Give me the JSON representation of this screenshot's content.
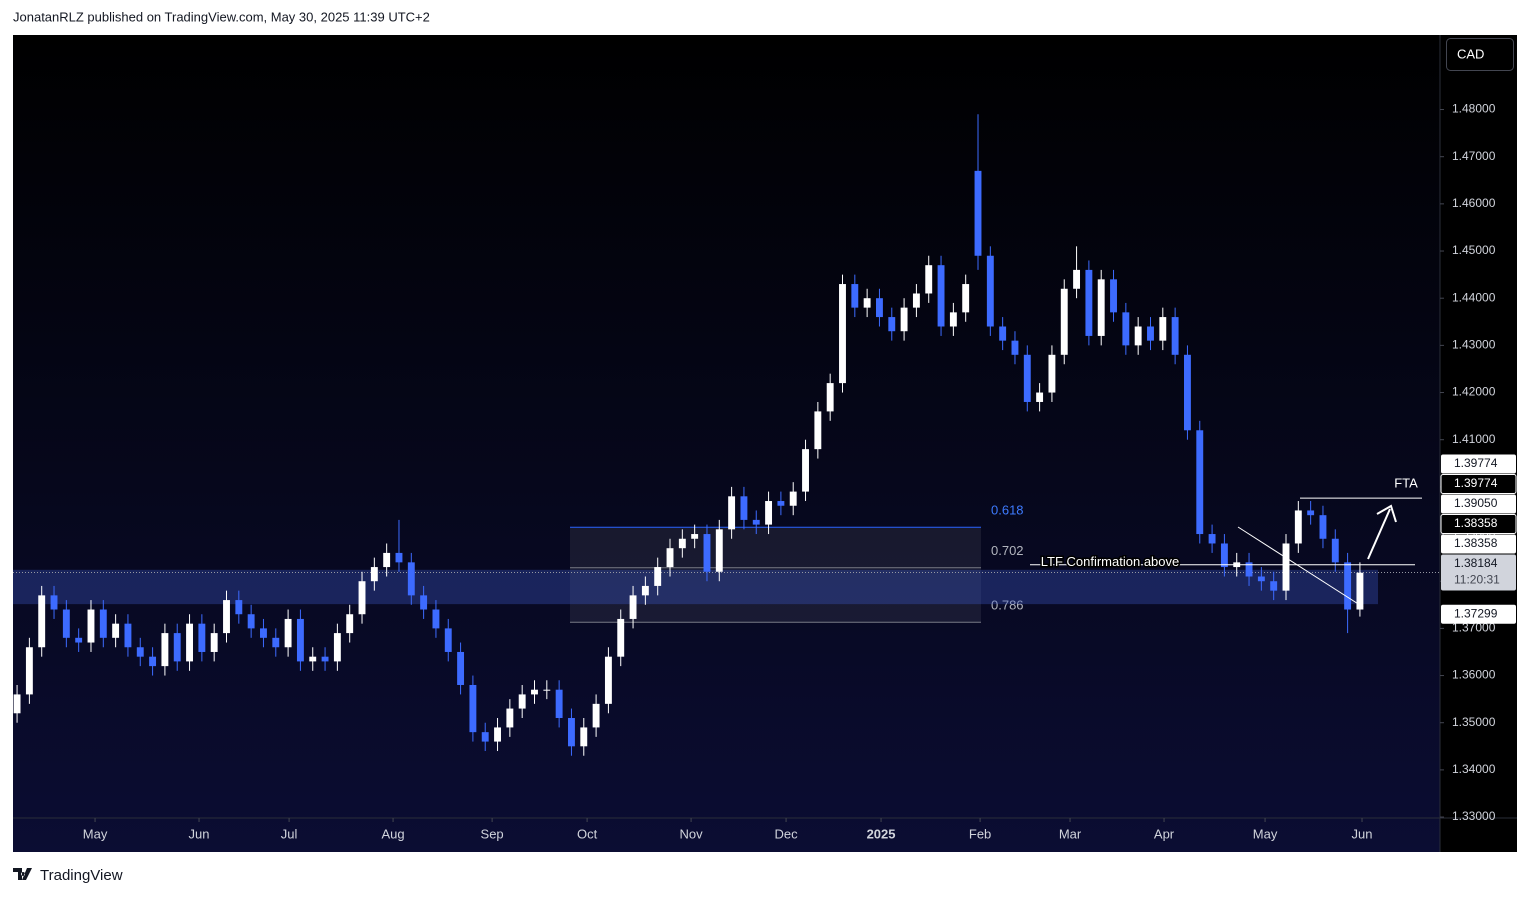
{
  "header": "JonatanRLZ published on TradingView.com, May 30, 2025 11:39 UTC+2",
  "footer": "TradingView",
  "chart_data": {
    "type": "candlestick",
    "currency": "CAD",
    "up_color": "#ffffff",
    "down_color": "#3d6bff",
    "xlim": [
      -0.33,
      115.5
    ],
    "xticks": [
      {
        "value": 6.33,
        "label": "May"
      },
      {
        "value": 14.77,
        "label": "Jun"
      },
      {
        "value": 22.08,
        "label": "Jul"
      },
      {
        "value": 30.52,
        "label": "Aug"
      },
      {
        "value": 38.56,
        "label": "Sep"
      },
      {
        "value": 46.27,
        "label": "Oct"
      },
      {
        "value": 54.71,
        "label": "Nov"
      },
      {
        "value": 62.42,
        "label": "Dec"
      },
      {
        "value": 70.13,
        "label": "2025"
      },
      {
        "value": 78.17,
        "label": "Feb"
      },
      {
        "value": 85.47,
        "label": "Mar"
      },
      {
        "value": 93.1,
        "label": "Apr"
      },
      {
        "value": 101.3,
        "label": "May"
      },
      {
        "value": 109.17,
        "label": "Jun"
      }
    ],
    "ylim": [
      1.3298,
      1.4958
    ],
    "yticks": [
      {
        "value": 1.33,
        "label": "1.33000"
      },
      {
        "value": 1.34,
        "label": "1.34000"
      },
      {
        "value": 1.35,
        "label": "1.35000"
      },
      {
        "value": 1.36,
        "label": "1.36000"
      },
      {
        "value": 1.37,
        "label": "1.37000"
      },
      {
        "value": 1.38,
        "label": "1.38000"
      },
      {
        "value": 1.39,
        "label": "1.39000"
      },
      {
        "value": 1.4,
        "label": "1.40000"
      },
      {
        "value": 1.41,
        "label": "1.41000"
      },
      {
        "value": 1.42,
        "label": "1.42000"
      },
      {
        "value": 1.43,
        "label": "1.43000"
      },
      {
        "value": 1.44,
        "label": "1.44000"
      },
      {
        "value": 1.45,
        "label": "1.45000"
      },
      {
        "value": 1.46,
        "label": "1.46000"
      },
      {
        "value": 1.47,
        "label": "1.47000"
      },
      {
        "value": 1.48,
        "label": "1.48000"
      }
    ],
    "open": [
      1.352,
      1.356,
      1.366,
      1.377,
      1.374,
      1.368,
      1.367,
      1.374,
      1.368,
      1.371,
      1.366,
      1.364,
      1.362,
      1.369,
      1.363,
      1.371,
      1.365,
      1.369,
      1.376,
      1.373,
      1.37,
      1.368,
      1.366,
      1.372,
      1.363,
      1.364,
      1.363,
      1.369,
      1.373,
      1.38,
      1.383,
      1.386,
      1.384,
      1.377,
      1.374,
      1.37,
      1.365,
      1.358,
      1.348,
      1.346,
      1.349,
      1.353,
      1.356,
      1.357,
      1.357,
      1.351,
      1.345,
      1.349,
      1.354,
      1.364,
      1.372,
      1.377,
      1.379,
      1.383,
      1.387,
      1.389,
      1.39,
      1.382,
      1.391,
      1.398,
      1.393,
      1.392,
      1.397,
      1.396,
      1.399,
      1.408,
      1.416,
      1.422,
      1.443,
      1.438,
      1.44,
      1.436,
      1.433,
      1.438,
      1.441,
      1.447,
      1.434,
      1.437,
      1.467,
      1.449,
      1.434,
      1.431,
      1.428,
      1.418,
      1.42,
      1.428,
      1.442,
      1.446,
      1.432,
      1.444,
      1.437,
      1.43,
      1.434,
      1.431,
      1.436,
      1.428,
      1.412,
      1.39,
      1.388,
      1.383,
      1.384,
      1.381,
      1.38,
      1.378,
      1.388,
      1.395,
      1.394,
      1.389,
      1.384,
      1.374
    ],
    "high": [
      1.358,
      1.368,
      1.379,
      1.379,
      1.376,
      1.37,
      1.376,
      1.376,
      1.373,
      1.373,
      1.368,
      1.366,
      1.371,
      1.371,
      1.373,
      1.373,
      1.371,
      1.378,
      1.378,
      1.375,
      1.372,
      1.37,
      1.374,
      1.374,
      1.366,
      1.366,
      1.371,
      1.375,
      1.382,
      1.385,
      1.388,
      1.393,
      1.386,
      1.379,
      1.376,
      1.372,
      1.367,
      1.36,
      1.35,
      1.351,
      1.355,
      1.358,
      1.359,
      1.359,
      1.359,
      1.353,
      1.351,
      1.356,
      1.366,
      1.374,
      1.379,
      1.381,
      1.385,
      1.389,
      1.391,
      1.392,
      1.392,
      1.393,
      1.4,
      1.4,
      1.395,
      1.399,
      1.399,
      1.401,
      1.41,
      1.418,
      1.424,
      1.445,
      1.445,
      1.442,
      1.442,
      1.438,
      1.44,
      1.443,
      1.449,
      1.449,
      1.439,
      1.445,
      1.479,
      1.451,
      1.436,
      1.433,
      1.43,
      1.422,
      1.43,
      1.444,
      1.451,
      1.448,
      1.446,
      1.446,
      1.439,
      1.436,
      1.436,
      1.438,
      1.438,
      1.43,
      1.414,
      1.392,
      1.39,
      1.386,
      1.386,
      1.383,
      1.382,
      1.39,
      1.397,
      1.397,
      1.396,
      1.391,
      1.386,
      1.384
    ],
    "low": [
      1.35,
      1.354,
      1.364,
      1.372,
      1.366,
      1.365,
      1.365,
      1.366,
      1.366,
      1.364,
      1.362,
      1.36,
      1.36,
      1.361,
      1.361,
      1.363,
      1.363,
      1.367,
      1.371,
      1.368,
      1.366,
      1.364,
      1.364,
      1.361,
      1.361,
      1.361,
      1.361,
      1.367,
      1.371,
      1.378,
      1.381,
      1.382,
      1.375,
      1.372,
      1.368,
      1.363,
      1.356,
      1.346,
      1.344,
      1.344,
      1.347,
      1.351,
      1.354,
      1.355,
      1.349,
      1.343,
      1.343,
      1.347,
      1.352,
      1.362,
      1.37,
      1.375,
      1.377,
      1.381,
      1.385,
      1.387,
      1.38,
      1.38,
      1.389,
      1.391,
      1.39,
      1.39,
      1.394,
      1.394,
      1.397,
      1.406,
      1.414,
      1.42,
      1.436,
      1.436,
      1.434,
      1.431,
      1.431,
      1.436,
      1.439,
      1.432,
      1.432,
      1.435,
      1.446,
      1.432,
      1.429,
      1.426,
      1.416,
      1.416,
      1.418,
      1.426,
      1.44,
      1.43,
      1.43,
      1.435,
      1.428,
      1.428,
      1.429,
      1.429,
      1.426,
      1.41,
      1.388,
      1.386,
      1.381,
      1.381,
      1.379,
      1.378,
      1.376,
      1.376,
      1.386,
      1.392,
      1.387,
      1.382,
      1.369,
      1.3725
    ],
    "close": [
      1.356,
      1.366,
      1.377,
      1.374,
      1.368,
      1.367,
      1.374,
      1.368,
      1.371,
      1.366,
      1.364,
      1.362,
      1.369,
      1.363,
      1.371,
      1.365,
      1.369,
      1.376,
      1.373,
      1.37,
      1.368,
      1.366,
      1.372,
      1.363,
      1.364,
      1.363,
      1.369,
      1.373,
      1.38,
      1.383,
      1.386,
      1.384,
      1.377,
      1.374,
      1.37,
      1.365,
      1.358,
      1.348,
      1.346,
      1.349,
      1.353,
      1.356,
      1.357,
      1.357,
      1.351,
      1.345,
      1.349,
      1.354,
      1.364,
      1.372,
      1.377,
      1.379,
      1.383,
      1.387,
      1.389,
      1.39,
      1.382,
      1.391,
      1.398,
      1.393,
      1.392,
      1.397,
      1.396,
      1.399,
      1.408,
      1.416,
      1.422,
      1.443,
      1.438,
      1.44,
      1.436,
      1.433,
      1.438,
      1.441,
      1.447,
      1.434,
      1.437,
      1.443,
      1.449,
      1.434,
      1.431,
      1.428,
      1.418,
      1.42,
      1.428,
      1.442,
      1.446,
      1.432,
      1.444,
      1.437,
      1.43,
      1.434,
      1.431,
      1.436,
      1.428,
      1.412,
      1.39,
      1.388,
      1.383,
      1.384,
      1.381,
      1.38,
      1.378,
      1.388,
      1.395,
      1.394,
      1.389,
      1.384,
      1.374,
      1.3818
    ],
    "fib_levels": [
      {
        "value": 1.39144,
        "label": "0.618"
      },
      {
        "value": 1.38285,
        "label": "0.702"
      },
      {
        "value": 1.37129,
        "label": "0.786"
      }
    ],
    "zone": [
      1.38242,
      1.37514
    ],
    "ltf": {
      "value": 1.38349,
      "label": "LTF Confirmation above"
    },
    "fta": {
      "value": 1.39761,
      "label": "FTA"
    },
    "last_price": 1.38184,
    "price_labels": [
      {
        "value": 1.39774,
        "label": "1.39774",
        "color": "#ffffff"
      },
      {
        "value": 1.39774,
        "label": "1.39774",
        "color": "#000000"
      },
      {
        "value": 1.3905,
        "label": "1.39050",
        "color": "#ffffff"
      },
      {
        "value": 1.38358,
        "label": "1.38358",
        "color": "#000000"
      },
      {
        "value": 1.38358,
        "label": "1.38358",
        "color": "#ffffff"
      },
      {
        "value": 1.38184,
        "label": "1.38184",
        "color": "#d1d4dc",
        "countdown": "11:20:31"
      },
      {
        "value": 1.37299,
        "label": "1.37299",
        "color": "#ffffff"
      }
    ]
  }
}
